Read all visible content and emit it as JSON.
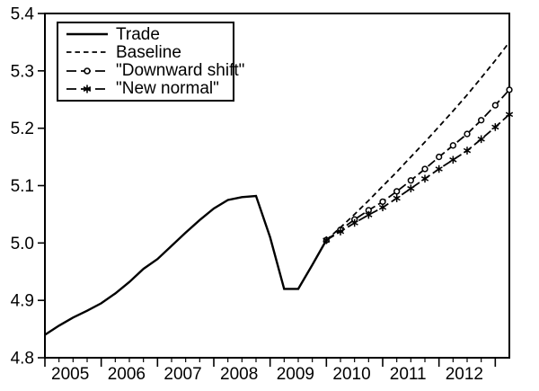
{
  "colors": {
    "line": "#000000",
    "background": "#ffffff"
  },
  "chart_data": {
    "type": "line",
    "title": "",
    "xlabel": "",
    "ylabel": "",
    "grid": false,
    "legend_position": "top-left",
    "x_axis": {
      "min": 2005.0,
      "max": 2013.25,
      "major_ticks": [
        2005,
        2006,
        2007,
        2008,
        2009,
        2010,
        2011,
        2012,
        2013
      ],
      "minor_tick_interval": 0.25,
      "labels": [
        "2005",
        "2006",
        "2007",
        "2008",
        "2009",
        "2010",
        "2011",
        "2012"
      ],
      "label_centers": [
        2005.45,
        2006.45,
        2007.45,
        2008.45,
        2009.45,
        2010.45,
        2011.45,
        2012.45
      ]
    },
    "y_axis": {
      "min": 4.8,
      "max": 5.4,
      "ticks": [
        4.8,
        4.9,
        5.0,
        5.1,
        5.2,
        5.3,
        5.4
      ],
      "tick_labels": [
        "4.8",
        "4.9",
        "5.0",
        "5.1",
        "5.2",
        "5.3",
        "5.4"
      ]
    },
    "series": [
      {
        "name": "Trade",
        "style": "solid",
        "marker": "none",
        "x": [
          2005.0,
          2005.25,
          2005.5,
          2005.75,
          2006.0,
          2006.25,
          2006.5,
          2006.75,
          2007.0,
          2007.25,
          2007.5,
          2007.75,
          2008.0,
          2008.25,
          2008.5,
          2008.75,
          2009.0,
          2009.25,
          2009.5,
          2009.75,
          2010.0
        ],
        "y": [
          4.84,
          4.856,
          4.87,
          4.882,
          4.895,
          4.912,
          4.932,
          4.955,
          4.972,
          4.995,
          5.018,
          5.04,
          5.06,
          5.075,
          5.08,
          5.082,
          5.01,
          4.92,
          4.92,
          4.962,
          5.005
        ]
      },
      {
        "name": "Baseline",
        "style": "short-dash",
        "marker": "none",
        "x": [
          2010.0,
          2010.25,
          2010.5,
          2010.75,
          2011.0,
          2011.25,
          2011.5,
          2011.75,
          2012.0,
          2012.25,
          2012.5,
          2012.75,
          2013.0,
          2013.25
        ],
        "y": [
          5.005,
          5.027,
          5.05,
          5.074,
          5.099,
          5.124,
          5.15,
          5.176,
          5.203,
          5.23,
          5.258,
          5.288,
          5.318,
          5.35
        ]
      },
      {
        "name": "\"Downward shift\"",
        "style": "long-dash",
        "marker": "circle",
        "x": [
          2010.0,
          2010.25,
          2010.5,
          2010.75,
          2011.0,
          2011.25,
          2011.5,
          2011.75,
          2012.0,
          2012.25,
          2012.5,
          2012.75,
          2013.0,
          2013.25
        ],
        "y": [
          5.005,
          5.023,
          5.041,
          5.057,
          5.072,
          5.09,
          5.109,
          5.129,
          5.15,
          5.17,
          5.19,
          5.214,
          5.24,
          5.267
        ]
      },
      {
        "name": "\"New normal\"",
        "style": "long-dash",
        "marker": "asterisk",
        "x": [
          2010.0,
          2010.25,
          2010.5,
          2010.75,
          2011.0,
          2011.25,
          2011.5,
          2011.75,
          2012.0,
          2012.25,
          2012.5,
          2012.75,
          2013.0,
          2013.25
        ],
        "y": [
          5.005,
          5.02,
          5.035,
          5.049,
          5.062,
          5.078,
          5.095,
          5.112,
          5.129,
          5.145,
          5.161,
          5.181,
          5.202,
          5.224
        ]
      }
    ]
  }
}
